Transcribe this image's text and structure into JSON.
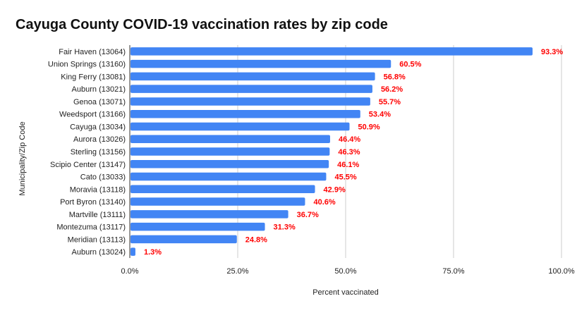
{
  "chart_data": {
    "type": "bar",
    "orientation": "horizontal",
    "title": "Cayuga County COVID-19 vaccination rates by zip code",
    "xlabel": "Percent vaccinated",
    "ylabel": "Municipality/Zip Code",
    "xlim": [
      0,
      100
    ],
    "x_ticks": [
      "0.0%",
      "25.0%",
      "50.0%",
      "75.0%",
      "100.0%"
    ],
    "grid": "vertical",
    "legend": "none",
    "bar_color": "#4285f4",
    "label_color": "#ff0000",
    "categories": [
      "Fair Haven (13064)",
      "Union Springs (13160)",
      "King Ferry (13081)",
      "Auburn (13021)",
      "Genoa (13071)",
      "Weedsport (13166)",
      "Cayuga (13034)",
      "Aurora (13026)",
      "Sterling (13156)",
      "Scipio Center (13147)",
      "Cato (13033)",
      "Moravia (13118)",
      "Port Byron (13140)",
      "Martville (13111)",
      "Montezuma (13117)",
      "Meridian (13113)",
      "Auburn (13024)"
    ],
    "values": [
      93.3,
      60.5,
      56.8,
      56.2,
      55.7,
      53.4,
      50.9,
      46.4,
      46.3,
      46.1,
      45.5,
      42.9,
      40.6,
      36.7,
      31.3,
      24.8,
      1.3
    ],
    "data_labels": [
      "93.3%",
      "60.5%",
      "56.8%",
      "56.2%",
      "55.7%",
      "53.4%",
      "50.9%",
      "46.4%",
      "46.3%",
      "46.1%",
      "45.5%",
      "42.9%",
      "40.6%",
      "36.7%",
      "31.3%",
      "24.8%",
      "1.3%"
    ]
  }
}
